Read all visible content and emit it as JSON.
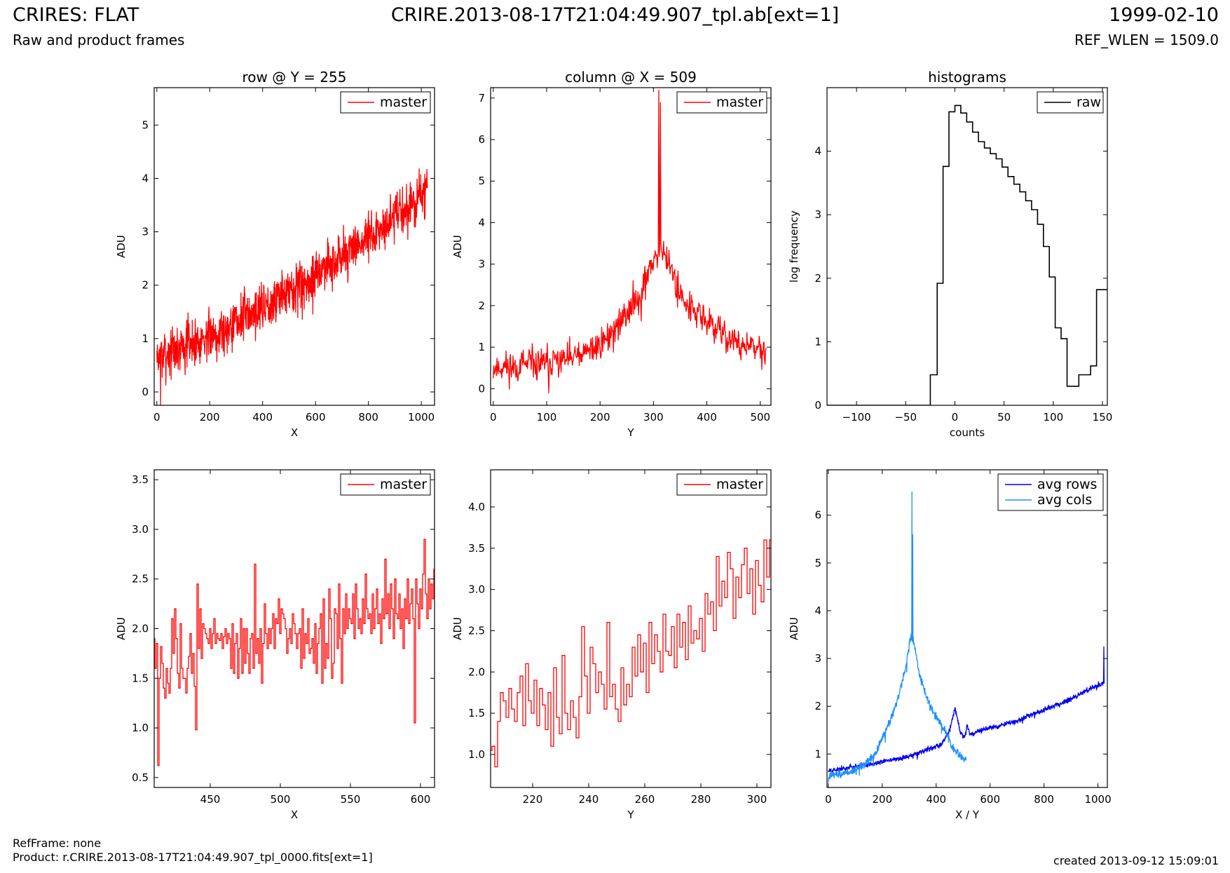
{
  "header": {
    "title": "CRIRES: FLAT",
    "subtitle": "Raw and product frames",
    "file": "CRIRE.2013-08-17T21:04:49.907_tpl.ab[ext=1]",
    "date": "1999-02-10",
    "ref_wlen": "REF_WLEN = 1509.0"
  },
  "footer": {
    "refframe": "RefFrame: none",
    "product": "Product: r.CRIRE.2013-08-17T21:04:49.907_tpl_0000.fits[ext=1]",
    "created": "created 2013-09-12 15:09:01"
  },
  "colors": {
    "red": "#ff0000",
    "black": "#000000",
    "avg_rows": "#0000ee",
    "avg_cols": "#1e90ff"
  },
  "chart_data": [
    {
      "id": "row",
      "type": "line",
      "title": "row @ Y = 255",
      "xlabel": "X",
      "ylabel": "ADU",
      "xlim": [
        -10,
        1050
      ],
      "ylim": [
        -0.25,
        5.7
      ],
      "xticks": [
        0,
        200,
        400,
        600,
        800,
        1000
      ],
      "yticks": [
        0,
        1,
        2,
        3,
        4,
        5
      ],
      "legend": "top-right",
      "series": [
        {
          "name": "master",
          "color": "#ff0000",
          "trend": {
            "x": [
              0,
              200,
              400,
              600,
              800,
              1024
            ],
            "y": [
              0.65,
              1.05,
              1.6,
              2.2,
              2.9,
              3.75
            ]
          },
          "n_points": 1024,
          "noise": 0.28,
          "seed": 7
        }
      ]
    },
    {
      "id": "col",
      "type": "line",
      "title": "column @ X = 509",
      "xlabel": "Y",
      "ylabel": "ADU",
      "xlim": [
        -5,
        520
      ],
      "ylim": [
        -0.4,
        7.25
      ],
      "xticks": [
        0,
        100,
        200,
        300,
        400,
        500
      ],
      "yticks": [
        0,
        1,
        2,
        3,
        4,
        5,
        6,
        7
      ],
      "legend": "top-right",
      "series": [
        {
          "name": "master",
          "color": "#ff0000",
          "trend": {
            "x": [
              0,
              100,
              170,
              220,
              260,
              290,
              305,
              318,
              340,
              370,
              420,
              470,
              512
            ],
            "y": [
              0.5,
              0.6,
              0.8,
              1.3,
              2.0,
              2.7,
              3.3,
              3.4,
              2.6,
              1.9,
              1.4,
              1.0,
              0.9
            ]
          },
          "spikes": [
            {
              "x": 310,
              "y": 7.2
            },
            {
              "x": 313,
              "y": 6.9
            }
          ],
          "n_points": 512,
          "noise": 0.25,
          "seed": 11
        }
      ]
    },
    {
      "id": "hist",
      "type": "line",
      "title": "histograms",
      "xlabel": "counts",
      "ylabel": "log frequency",
      "xlim": [
        -130,
        155
      ],
      "ylim": [
        0,
        5.0
      ],
      "xticks": [
        -100,
        -50,
        0,
        50,
        100,
        150
      ],
      "yticks": [
        0,
        1,
        2,
        3,
        4
      ],
      "legend": "top-right",
      "series": [
        {
          "name": "raw",
          "color": "#000000",
          "step": true,
          "edges": [
            -130,
            -25,
            -18,
            -12,
            -6,
            0,
            6,
            12,
            18,
            24,
            30,
            36,
            42,
            48,
            54,
            60,
            66,
            72,
            78,
            84,
            90,
            96,
            102,
            108,
            114,
            120,
            126,
            132,
            138,
            144,
            150,
            155
          ],
          "values": [
            0,
            0.48,
            1.92,
            3.76,
            4.62,
            4.72,
            4.6,
            4.46,
            4.3,
            4.15,
            4.05,
            3.96,
            3.88,
            3.75,
            3.6,
            3.48,
            3.36,
            3.22,
            3.08,
            2.85,
            2.5,
            2.02,
            1.22,
            1.05,
            0.3,
            0.3,
            0.48,
            0.48,
            0.62,
            1.82,
            1.82
          ]
        }
      ]
    },
    {
      "id": "rowzoom",
      "type": "line",
      "xlabel": "X",
      "ylabel": "ADU",
      "xlim": [
        410,
        610
      ],
      "ylim": [
        0.4,
        3.6
      ],
      "xticks": [
        450,
        500,
        550,
        600
      ],
      "yticks": [
        0.5,
        1.0,
        1.5,
        2.0,
        2.5,
        3.0,
        3.5
      ],
      "legend": "top-right",
      "series": [
        {
          "name": "master",
          "color": "#ff0000",
          "step": true,
          "x_start": 410,
          "x_step": 1,
          "values": [
            1.9,
            1.6,
            1.85,
            0.62,
            1.5,
            1.82,
            1.65,
            1.4,
            1.3,
            1.6,
            1.45,
            1.35,
            1.6,
            2.1,
            1.75,
            2.2,
            1.9,
            1.55,
            1.4,
            2.05,
            1.6,
            1.5,
            1.5,
            1.35,
            1.6,
            1.72,
            1.95,
            1.55,
            1.75,
            1.42,
            0.98,
            2.45,
            1.8,
            2.2,
            1.7,
            2.05,
            2.0,
            1.95,
            1.9,
            1.85,
            2.0,
            1.8,
            1.95,
            2.1,
            1.85,
            1.95,
            1.9,
            1.88,
            1.95,
            1.8,
            1.92,
            2.0,
            1.85,
            1.95,
            1.9,
            1.6,
            2.05,
            1.55,
            1.85,
            1.95,
            1.5,
            1.8,
            2.1,
            1.55,
            2.0,
            1.65,
            2.0,
            1.75,
            1.55,
            1.9,
            1.95,
            1.6,
            2.65,
            1.75,
            1.9,
            1.65,
            2.0,
            1.45,
            1.85,
            2.25,
            1.95,
            1.8,
            2.0,
            1.85,
            2.0,
            2.15,
            1.8,
            2.1,
            2.05,
            2.3,
            1.95,
            2.2,
            2.15,
            2.1,
            2.0,
            1.75,
            1.9,
            2.0,
            1.85,
            2.15,
            2.05,
            1.95,
            1.8,
            1.95,
            2.0,
            1.6,
            2.2,
            1.7,
            1.95,
            1.85,
            2.1,
            1.75,
            1.8,
            1.9,
            1.65,
            2.05,
            1.55,
            1.85,
            2.0,
            2.15,
            1.45,
            2.3,
            1.6,
            1.85,
            1.7,
            2.4,
            2.1,
            1.5,
            1.65,
            2.2,
            2.15,
            1.8,
            2.45,
            1.9,
            1.45,
            2.2,
            1.95,
            2.35,
            2.0,
            2.2,
            2.1,
            2.05,
            2.35,
            1.9,
            2.45,
            2.2,
            2.0,
            2.1,
            1.95,
            2.3,
            2.05,
            2.55,
            2.2,
            2.1,
            2.15,
            1.95,
            2.35,
            2.0,
            2.2,
            2.4,
            2.05,
            2.15,
            1.85,
            2.3,
            2.1,
            2.7,
            2.15,
            2.35,
            2.0,
            2.45,
            2.2,
            1.9,
            2.5,
            2.15,
            2.1,
            2.35,
            2.0,
            2.2,
            1.8,
            2.3,
            2.1,
            2.5,
            2.05,
            2.25,
            2.4,
            2.1,
            1.05,
            2.5,
            2.25,
            2.0,
            2.4,
            2.2,
            2.55,
            2.9,
            2.35,
            2.1,
            2.5,
            2.2,
            2.45,
            2.3,
            2.6,
            2.0,
            2.5,
            1.9,
            2.65
          ]
        }
      ]
    },
    {
      "id": "colzoom",
      "type": "line",
      "xlabel": "Y",
      "ylabel": "ADU",
      "xlim": [
        205,
        305
      ],
      "ylim": [
        0.6,
        4.45
      ],
      "xticks": [
        220,
        240,
        260,
        280,
        300
      ],
      "yticks": [
        1.0,
        1.5,
        2.0,
        2.5,
        3.0,
        3.5,
        4.0
      ],
      "legend": "top-right",
      "series": [
        {
          "name": "master",
          "color": "#ff0000",
          "step": true,
          "x_start": 205,
          "x_step": 1,
          "values": [
            1.05,
            1.1,
            0.85,
            1.4,
            1.75,
            1.65,
            1.45,
            1.8,
            1.55,
            1.4,
            1.75,
            1.95,
            1.35,
            2.1,
            1.65,
            1.5,
            1.9,
            1.35,
            1.8,
            1.6,
            1.3,
            1.75,
            1.1,
            2.05,
            1.45,
            1.25,
            2.2,
            1.5,
            1.3,
            1.65,
            1.45,
            1.2,
            1.7,
            2.55,
            1.95,
            1.5,
            2.3,
            2.1,
            1.75,
            2.0,
            1.85,
            1.55,
            2.6,
            1.7,
            1.85,
            1.55,
            1.4,
            2.05,
            1.6,
            1.85,
            1.7,
            2.3,
            1.95,
            2.45,
            2.0,
            2.35,
            1.75,
            2.6,
            2.1,
            2.45,
            2.25,
            2.0,
            2.7,
            2.25,
            2.2,
            2.55,
            2.05,
            2.7,
            2.3,
            2.6,
            2.15,
            2.8,
            2.35,
            2.5,
            2.4,
            2.65,
            2.25,
            2.95,
            2.7,
            2.85,
            2.5,
            3.4,
            2.8,
            3.1,
            2.9,
            3.45,
            3.25,
            2.65,
            3.15,
            2.9,
            3.3,
            3.5,
            2.95,
            3.25,
            2.7,
            3.35,
            3.05,
            2.85,
            3.6,
            3.15,
            3.6
          ]
        }
      ]
    },
    {
      "id": "avg",
      "type": "line",
      "xlabel": "X / Y",
      "ylabel": "ADU",
      "xlim": [
        -5,
        1035
      ],
      "ylim": [
        0.3,
        6.95
      ],
      "xticks": [
        0,
        200,
        400,
        600,
        800,
        1000
      ],
      "yticks": [
        1,
        2,
        3,
        4,
        5,
        6
      ],
      "legend": "top-right",
      "series": [
        {
          "name": "avg rows",
          "color": "#0000ee",
          "trend": {
            "x": [
              0,
              150,
              300,
              420,
              450,
              470,
              490,
              505,
              515,
              525,
              540,
              700,
              900,
              1020
            ],
            "y": [
              0.65,
              0.78,
              0.95,
              1.2,
              1.5,
              1.95,
              1.45,
              1.35,
              1.6,
              1.4,
              1.45,
              1.7,
              2.15,
              2.5
            ]
          },
          "spikes": [
            {
              "x": 1022,
              "y": 3.25
            }
          ],
          "n_points": 1024,
          "noise": 0.035,
          "seed": 5
        },
        {
          "name": "avg cols",
          "color": "#1e90ff",
          "trend": {
            "x": [
              0,
              100,
              170,
              220,
              260,
              290,
              305,
              318,
              340,
              370,
              420,
              470,
              512
            ],
            "y": [
              0.55,
              0.65,
              0.95,
              1.55,
              2.2,
              2.9,
              3.45,
              3.3,
              2.6,
              2.1,
              1.6,
              1.05,
              0.85
            ]
          },
          "spikes": [
            {
              "x": 310,
              "y": 6.5
            },
            {
              "x": 313,
              "y": 5.6
            }
          ],
          "n_points": 512,
          "noise": 0.06,
          "seed": 9
        }
      ]
    }
  ]
}
